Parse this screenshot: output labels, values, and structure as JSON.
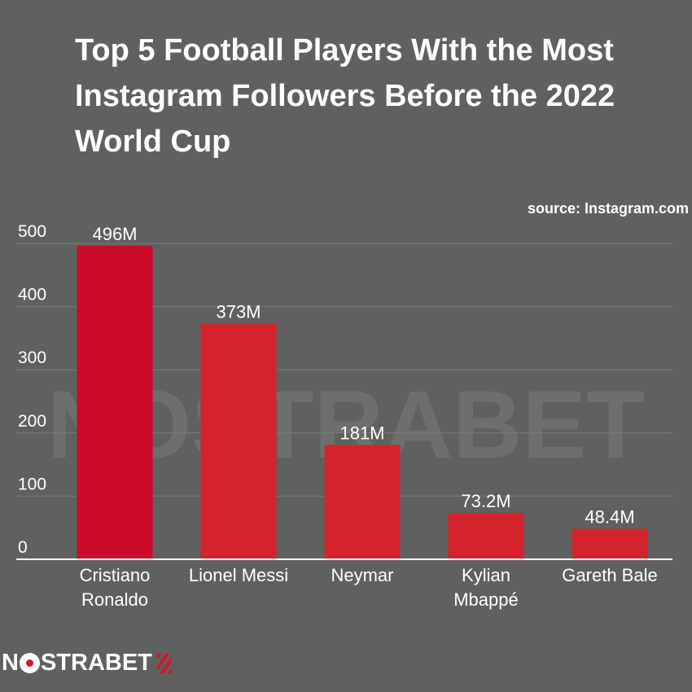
{
  "title": "Top 5 Football Players With the Most Instagram Followers Before the 2022 World Cup",
  "source": "source: Instagram.com",
  "watermark": "NOSTRABET",
  "logo": {
    "left": "N",
    "right": "STRABET"
  },
  "colors": {
    "background": "#5f6060",
    "bar_primary": "#cc0a2a",
    "bar_secondary": "#d4232d",
    "text": "#ffffff",
    "grid": "#7a7b7b"
  },
  "chart_data": {
    "type": "bar",
    "categories": [
      "Cristiano Ronaldo",
      "Lionel Messi",
      "Neymar",
      "Kylian Mbappé",
      "Gareth Bale"
    ],
    "category_lines": [
      [
        "Cristiano",
        "Ronaldo"
      ],
      [
        "Lionel Messi"
      ],
      [
        "Neymar"
      ],
      [
        "Kylian",
        "Mbappé"
      ],
      [
        "Gareth Bale"
      ]
    ],
    "values": [
      496,
      373,
      181,
      73.2,
      48.4
    ],
    "data_labels": [
      "496M",
      "373M",
      "181M",
      "73.2M",
      "48.4M"
    ],
    "yticks": [
      0,
      100,
      200,
      300,
      400,
      500
    ],
    "ylim": [
      0,
      500
    ],
    "grid": true,
    "legend": "none"
  }
}
